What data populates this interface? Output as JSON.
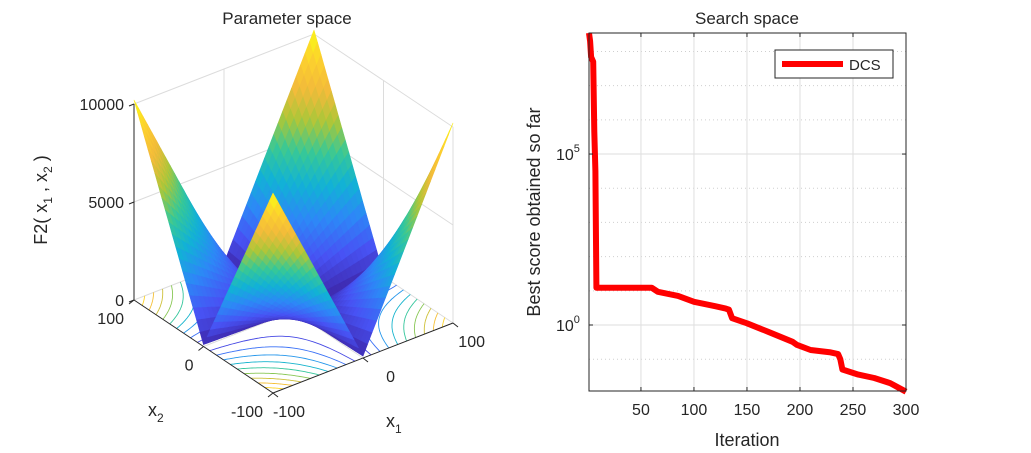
{
  "chart_data": [
    {
      "type": "surface",
      "title": "Parameter space",
      "xlabel": {
        "base": "x",
        "sub": "1"
      },
      "ylabel": {
        "base": "x",
        "sub": "2"
      },
      "zlabel": {
        "pre": "F2( x",
        "sub1": "1",
        "mid": " , x",
        "sub2": "2",
        "post": " )"
      },
      "xlim": [
        -100,
        100
      ],
      "ylim": [
        -100,
        100
      ],
      "zlim": [
        0,
        10000
      ],
      "xticks": [
        {
          "v": -100,
          "label": "-100"
        },
        {
          "v": 0,
          "label": "0"
        },
        {
          "v": 100,
          "label": "100"
        }
      ],
      "yticks": [
        {
          "v": -100,
          "label": "-100"
        },
        {
          "v": 0,
          "label": "0"
        },
        {
          "v": 100,
          "label": "100"
        }
      ],
      "zticks": [
        {
          "v": 0,
          "label": "0"
        },
        {
          "v": 5000,
          "label": "5000"
        },
        {
          "v": 10000,
          "label": "10000"
        }
      ],
      "contour_levels": [
        1000,
        2000,
        3000,
        4000,
        5000,
        6000,
        7000,
        8000,
        9000
      ],
      "grid": true
    },
    {
      "type": "line",
      "title": "Search space",
      "xlabel": "Iteration",
      "ylabel": "Best score obtained so far",
      "yscale": "log",
      "xlim": [
        1,
        300
      ],
      "ylim_log10": [
        -1.93,
        8.54
      ],
      "xticks": [
        {
          "v": 50,
          "label": "50"
        },
        {
          "v": 100,
          "label": "100"
        },
        {
          "v": 150,
          "label": "150"
        },
        {
          "v": 200,
          "label": "200"
        },
        {
          "v": 250,
          "label": "250"
        },
        {
          "v": 300,
          "label": "300"
        }
      ],
      "yticks": [
        {
          "exp": 0,
          "base": "10",
          "sup": "0"
        },
        {
          "exp": 5,
          "base": "10",
          "sup": "5"
        }
      ],
      "legend_position": "top-right",
      "grid": true,
      "series": [
        {
          "name": "DCS",
          "color": "#ff0000",
          "x": [
            1,
            2,
            3,
            5,
            6,
            7,
            8,
            60,
            66,
            85,
            100,
            120,
            130,
            133,
            136,
            150,
            170,
            193,
            197,
            210,
            229,
            236,
            238,
            240,
            255,
            270,
            285,
            300
          ],
          "log10_y": [
            8.54,
            8.3,
            7.84,
            7.7,
            5.65,
            4.5,
            1.09,
            1.09,
            0.97,
            0.85,
            0.68,
            0.55,
            0.48,
            0.45,
            0.2,
            0.05,
            -0.2,
            -0.49,
            -0.58,
            -0.73,
            -0.8,
            -0.85,
            -1.0,
            -1.3,
            -1.45,
            -1.55,
            -1.7,
            -1.95
          ]
        }
      ]
    }
  ]
}
